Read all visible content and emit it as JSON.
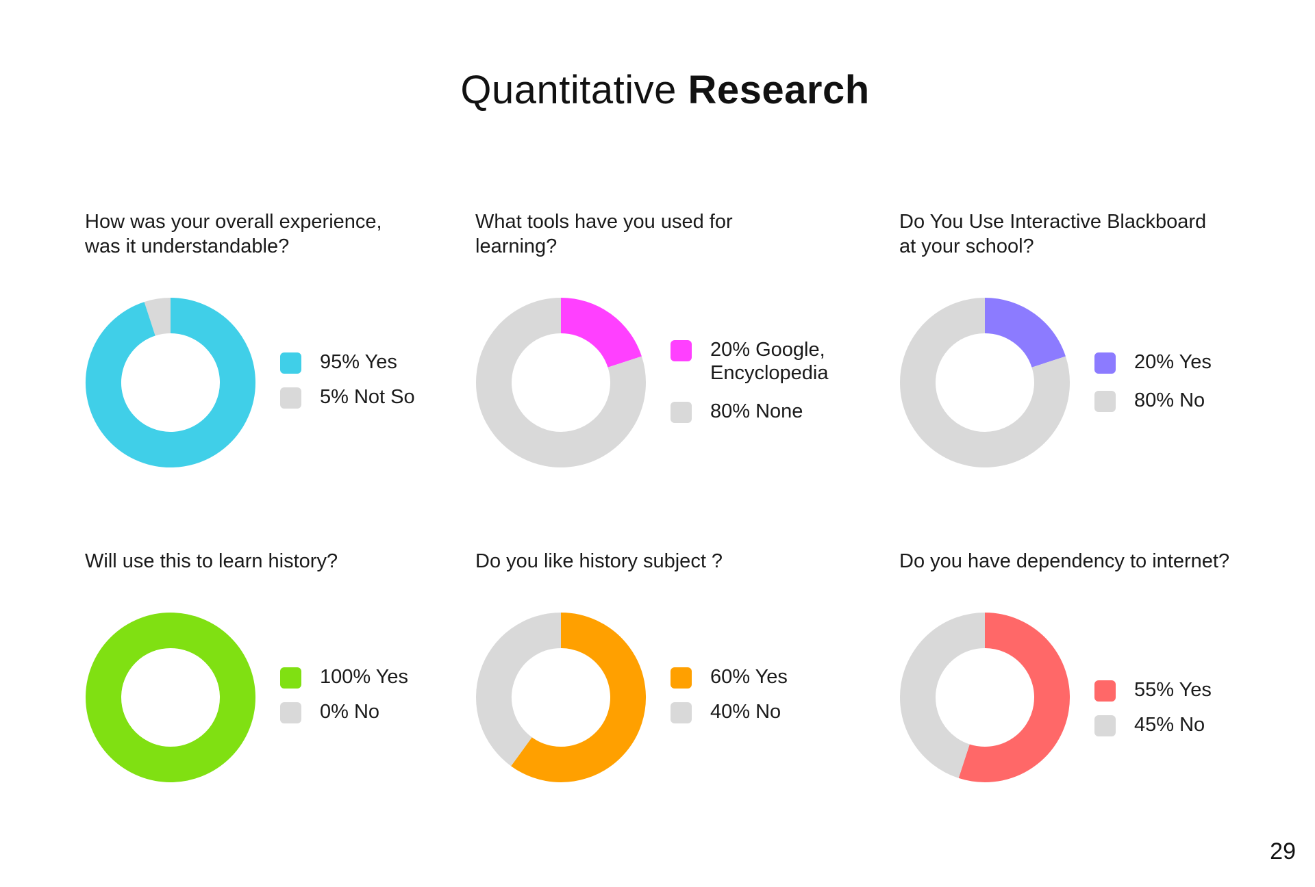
{
  "title": {
    "regular": "Quantitative ",
    "bold": "Research"
  },
  "page_number": "29",
  "chart_data": [
    {
      "type": "pie",
      "title": "How was your overall experience, was it understandable?",
      "categories": [
        "Yes",
        "Not So"
      ],
      "values": [
        95,
        5
      ],
      "legend": [
        "95% Yes",
        "5% Not So"
      ],
      "colors": [
        "#40CFE8",
        "#D9D9D9"
      ]
    },
    {
      "type": "pie",
      "title": "What tools have you used for learning?",
      "categories": [
        "Google, Encyclopedia",
        "None"
      ],
      "values": [
        20,
        80
      ],
      "legend": [
        "20%  Google,\nEncyclopedia",
        "80%  None"
      ],
      "colors": [
        "#FF40FF",
        "#D9D9D9"
      ]
    },
    {
      "type": "pie",
      "title": "Do You Use Interactive Blackboard at your school?",
      "categories": [
        "Yes",
        "No"
      ],
      "values": [
        20,
        80
      ],
      "legend": [
        "20% Yes",
        "80%  No"
      ],
      "colors": [
        "#8C7BFF",
        "#D9D9D9"
      ]
    },
    {
      "type": "pie",
      "title": "Will use this to learn history?",
      "categories": [
        "Yes",
        "No"
      ],
      "values": [
        100,
        0
      ],
      "legend": [
        "100% Yes",
        "0% No"
      ],
      "colors": [
        "#80E012",
        "#D9D9D9"
      ]
    },
    {
      "type": "pie",
      "title": "Do you like history subject ?",
      "categories": [
        "Yes",
        "No"
      ],
      "values": [
        60,
        40
      ],
      "legend": [
        "60% Yes",
        "40% No"
      ],
      "colors": [
        "#FFA000",
        "#D9D9D9"
      ]
    },
    {
      "type": "pie",
      "title": "Do you have dependency to internet?",
      "categories": [
        "Yes",
        "No"
      ],
      "values": [
        55,
        45
      ],
      "legend": [
        "55%  Yes",
        "45%  No"
      ],
      "colors": [
        "#FF6868",
        "#D9D9D9"
      ]
    }
  ],
  "questions": [
    "How was your overall experience,\nwas it understandable?",
    "What tools have you used for\nlearning?",
    "Do You Use Interactive Blackboard\nat your school?",
    "Will use this to learn history?",
    "Do you like history subject ?",
    "Do you have dependency to internet?"
  ]
}
